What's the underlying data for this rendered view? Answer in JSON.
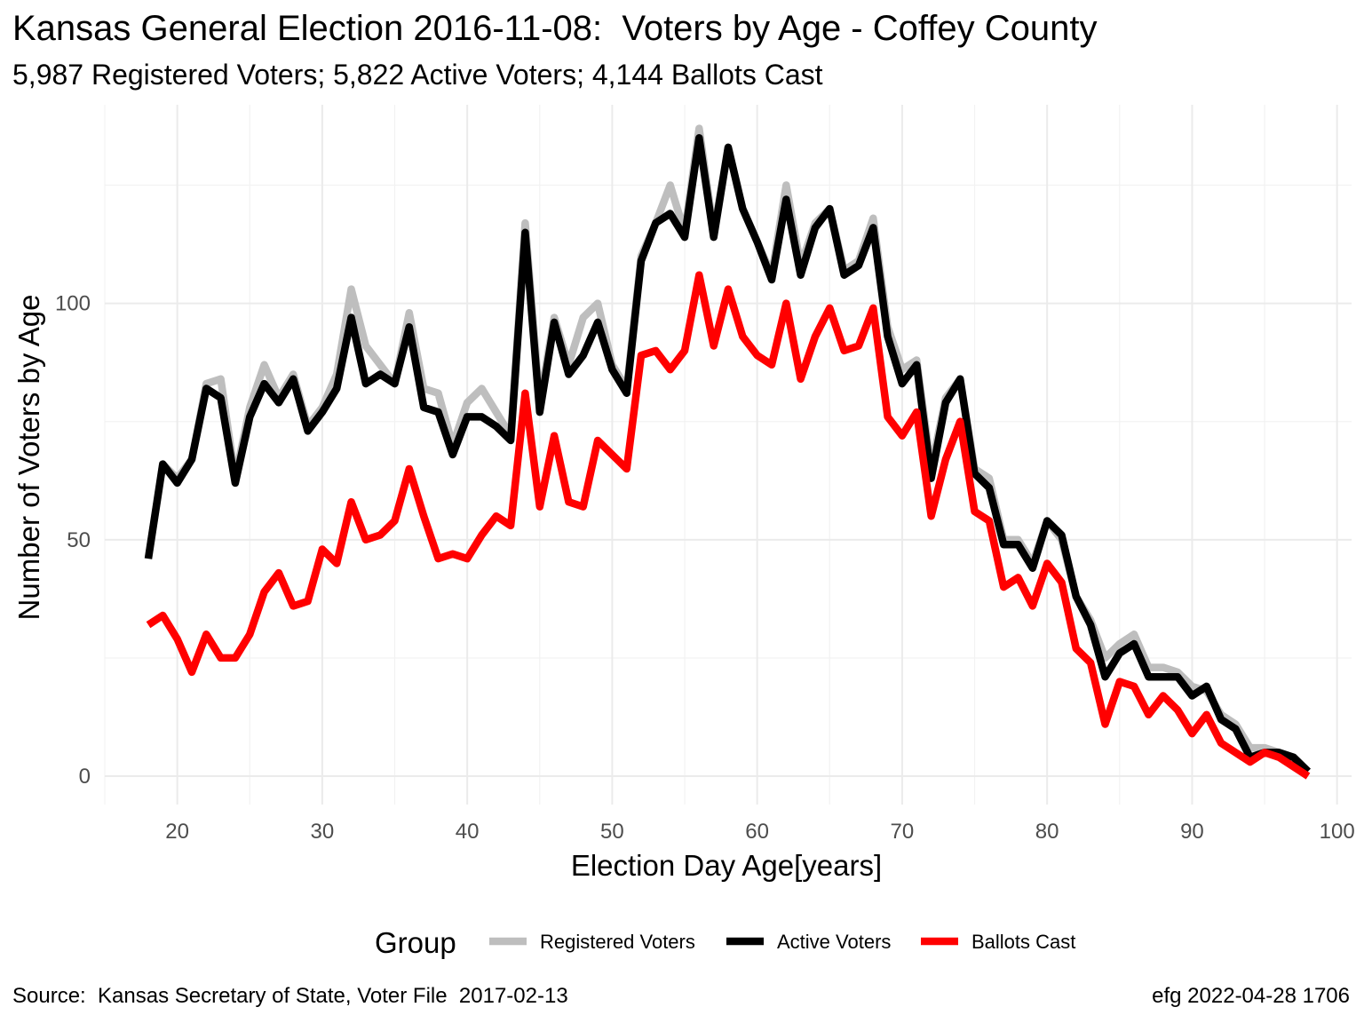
{
  "chart_data": {
    "type": "line",
    "title": "Kansas General Election 2016-11-08:  Voters by Age - Coffey County",
    "subtitle": "5,987 Registered Voters; 5,822 Active Voters; 4,144 Ballots Cast",
    "xlabel": "Election Day Age[years]",
    "ylabel": "Number of Voters by Age",
    "xlim": [
      15,
      101
    ],
    "ylim": [
      -6,
      142
    ],
    "x_ticks": [
      20,
      30,
      40,
      50,
      60,
      70,
      80,
      90,
      100
    ],
    "y_ticks": [
      0,
      50,
      100
    ],
    "grid": true,
    "legend": {
      "title": "Group",
      "position": "bottom"
    },
    "caption_left": "Source:  Kansas Secretary of State, Voter File  2017-02-13",
    "caption_right": "efg 2022-04-28 1706",
    "x": [
      18,
      19,
      20,
      21,
      22,
      23,
      24,
      25,
      26,
      27,
      28,
      29,
      30,
      31,
      32,
      33,
      34,
      35,
      36,
      37,
      38,
      39,
      40,
      41,
      42,
      43,
      44,
      45,
      46,
      47,
      48,
      49,
      50,
      51,
      52,
      53,
      54,
      55,
      56,
      57,
      58,
      59,
      60,
      61,
      62,
      63,
      64,
      65,
      66,
      67,
      68,
      69,
      70,
      71,
      72,
      73,
      74,
      75,
      76,
      77,
      78,
      79,
      80,
      81,
      82,
      83,
      84,
      85,
      86,
      87,
      88,
      89,
      90,
      91,
      92,
      93,
      94,
      95,
      96,
      97,
      98
    ],
    "series": [
      {
        "name": "Registered Voters",
        "color": "#bebebe",
        "values": [
          46,
          66,
          63,
          67,
          83,
          84,
          63,
          78,
          87,
          80,
          85,
          74,
          78,
          85,
          103,
          91,
          87,
          83,
          98,
          82,
          81,
          70,
          79,
          82,
          77,
          72,
          117,
          79,
          97,
          87,
          97,
          100,
          87,
          82,
          110,
          117,
          125,
          115,
          137,
          115,
          133,
          120,
          113,
          106,
          125,
          108,
          117,
          120,
          107,
          109,
          118,
          95,
          86,
          88,
          65,
          80,
          84,
          65,
          63,
          50,
          50,
          45,
          54,
          50,
          38,
          33,
          25,
          28,
          30,
          23,
          23,
          22,
          19,
          18,
          13,
          11,
          6,
          6,
          5,
          4,
          1
        ]
      },
      {
        "name": "Active Voters",
        "color": "#000000",
        "values": [
          46,
          66,
          62,
          67,
          82,
          80,
          62,
          76,
          83,
          79,
          84,
          73,
          77,
          82,
          97,
          83,
          85,
          83,
          95,
          78,
          77,
          68,
          76,
          76,
          74,
          71,
          115,
          77,
          96,
          85,
          89,
          96,
          86,
          81,
          109,
          117,
          119,
          114,
          135,
          114,
          133,
          120,
          113,
          105,
          122,
          106,
          116,
          120,
          106,
          108,
          116,
          93,
          83,
          87,
          63,
          79,
          84,
          64,
          61,
          49,
          49,
          44,
          54,
          51,
          38,
          32,
          21,
          26,
          28,
          21,
          21,
          21,
          17,
          19,
          12,
          10,
          4,
          5,
          5,
          4,
          1
        ]
      },
      {
        "name": "Ballots Cast",
        "color": "#ff0000",
        "values": [
          32,
          34,
          29,
          22,
          30,
          25,
          25,
          30,
          39,
          43,
          36,
          37,
          48,
          45,
          58,
          50,
          51,
          54,
          65,
          55,
          46,
          47,
          46,
          51,
          55,
          53,
          81,
          57,
          72,
          58,
          57,
          71,
          68,
          65,
          89,
          90,
          86,
          90,
          106,
          91,
          103,
          93,
          89,
          87,
          100,
          84,
          93,
          99,
          90,
          91,
          99,
          76,
          72,
          77,
          55,
          67,
          75,
          56,
          54,
          40,
          42,
          36,
          45,
          41,
          27,
          24,
          11,
          20,
          19,
          13,
          17,
          14,
          9,
          13,
          7,
          5,
          3,
          5,
          4,
          2,
          0
        ]
      }
    ]
  }
}
